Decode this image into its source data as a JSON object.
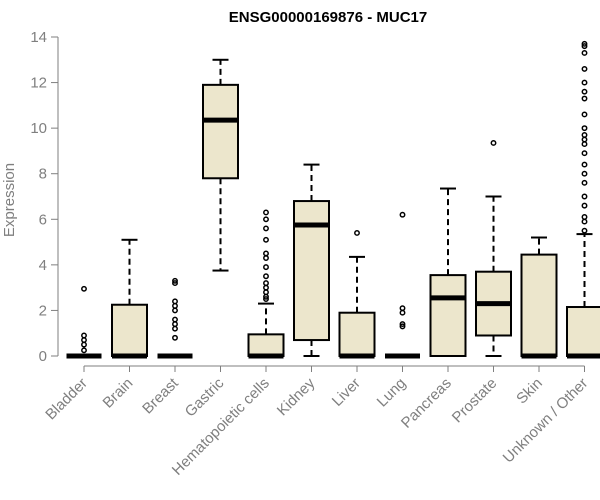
{
  "chart_data": {
    "type": "boxplot",
    "title": "ENSG00000169876 - MUC17",
    "ylabel": "Expression",
    "xlabel": "",
    "ylim": [
      0,
      14
    ],
    "yticks": [
      0,
      2,
      4,
      6,
      8,
      10,
      12,
      14
    ],
    "grid": false,
    "box_color": "#ece6cc",
    "line_color": "#000000",
    "axis_text_color": "#7f7f7f",
    "categories": [
      "Bladder",
      "Brain",
      "Breast",
      "Gastric",
      "Hematopoietic cells",
      "Kidney",
      "Liver",
      "Lung",
      "Pancreas",
      "Prostate",
      "Skin",
      "Unknown / Other"
    ],
    "boxes": [
      {
        "category": "Bladder",
        "q1": 0,
        "median": 0,
        "q3": 0,
        "whisker_low": 0,
        "whisker_high": 0,
        "outliers": [
          2.95,
          0.9,
          0.7,
          0.5,
          0.25
        ]
      },
      {
        "category": "Brain",
        "q1": 0,
        "median": 0,
        "q3": 2.25,
        "whisker_low": 0,
        "whisker_high": 5.1,
        "outliers": []
      },
      {
        "category": "Breast",
        "q1": 0,
        "median": 0,
        "q3": 0,
        "whisker_low": 0,
        "whisker_high": 0,
        "outliers": [
          3.3,
          3.2,
          2.4,
          2.2,
          2.0,
          1.6,
          1.4,
          1.2,
          0.8
        ]
      },
      {
        "category": "Gastric",
        "q1": 7.8,
        "median": 10.35,
        "q3": 11.9,
        "whisker_low": 3.75,
        "whisker_high": 13.0,
        "outliers": []
      },
      {
        "category": "Hematopoietic cells",
        "q1": 0,
        "median": 0,
        "q3": 0.95,
        "whisker_low": 0,
        "whisker_high": 2.3,
        "outliers": [
          6.3,
          6.0,
          5.6,
          5.1,
          4.5,
          4.3,
          3.9,
          3.5,
          3.2,
          3.0,
          2.8,
          2.6,
          2.5
        ]
      },
      {
        "category": "Kidney",
        "q1": 0.7,
        "median": 5.75,
        "q3": 6.8,
        "whisker_low": 0,
        "whisker_high": 8.4,
        "outliers": []
      },
      {
        "category": "Liver",
        "q1": 0,
        "median": 0,
        "q3": 1.9,
        "whisker_low": 0,
        "whisker_high": 4.35,
        "outliers": [
          5.4
        ]
      },
      {
        "category": "Lung",
        "q1": 0,
        "median": 0,
        "q3": 0,
        "whisker_low": 0,
        "whisker_high": 0,
        "outliers": [
          6.2,
          2.1,
          1.9,
          1.4,
          1.3
        ]
      },
      {
        "category": "Pancreas",
        "q1": 0,
        "median": 2.55,
        "q3": 3.55,
        "whisker_low": 0,
        "whisker_high": 7.35,
        "outliers": []
      },
      {
        "category": "Prostate",
        "q1": 0.9,
        "median": 2.3,
        "q3": 3.7,
        "whisker_low": 0,
        "whisker_high": 7.0,
        "outliers": [
          9.35
        ]
      },
      {
        "category": "Skin",
        "q1": 0,
        "median": 0,
        "q3": 4.45,
        "whisker_low": 0,
        "whisker_high": 5.2,
        "outliers": []
      },
      {
        "category": "Unknown / Other",
        "q1": 0,
        "median": 0,
        "q3": 2.15,
        "whisker_low": 0,
        "whisker_high": 5.35,
        "outliers": [
          13.7,
          13.6,
          13.3,
          12.6,
          12.0,
          11.6,
          11.3,
          10.6,
          10.0,
          9.7,
          9.5,
          9.3,
          8.9,
          8.4,
          8.0,
          7.6,
          7.0,
          6.6,
          6.1,
          5.9,
          5.5
        ]
      }
    ]
  }
}
